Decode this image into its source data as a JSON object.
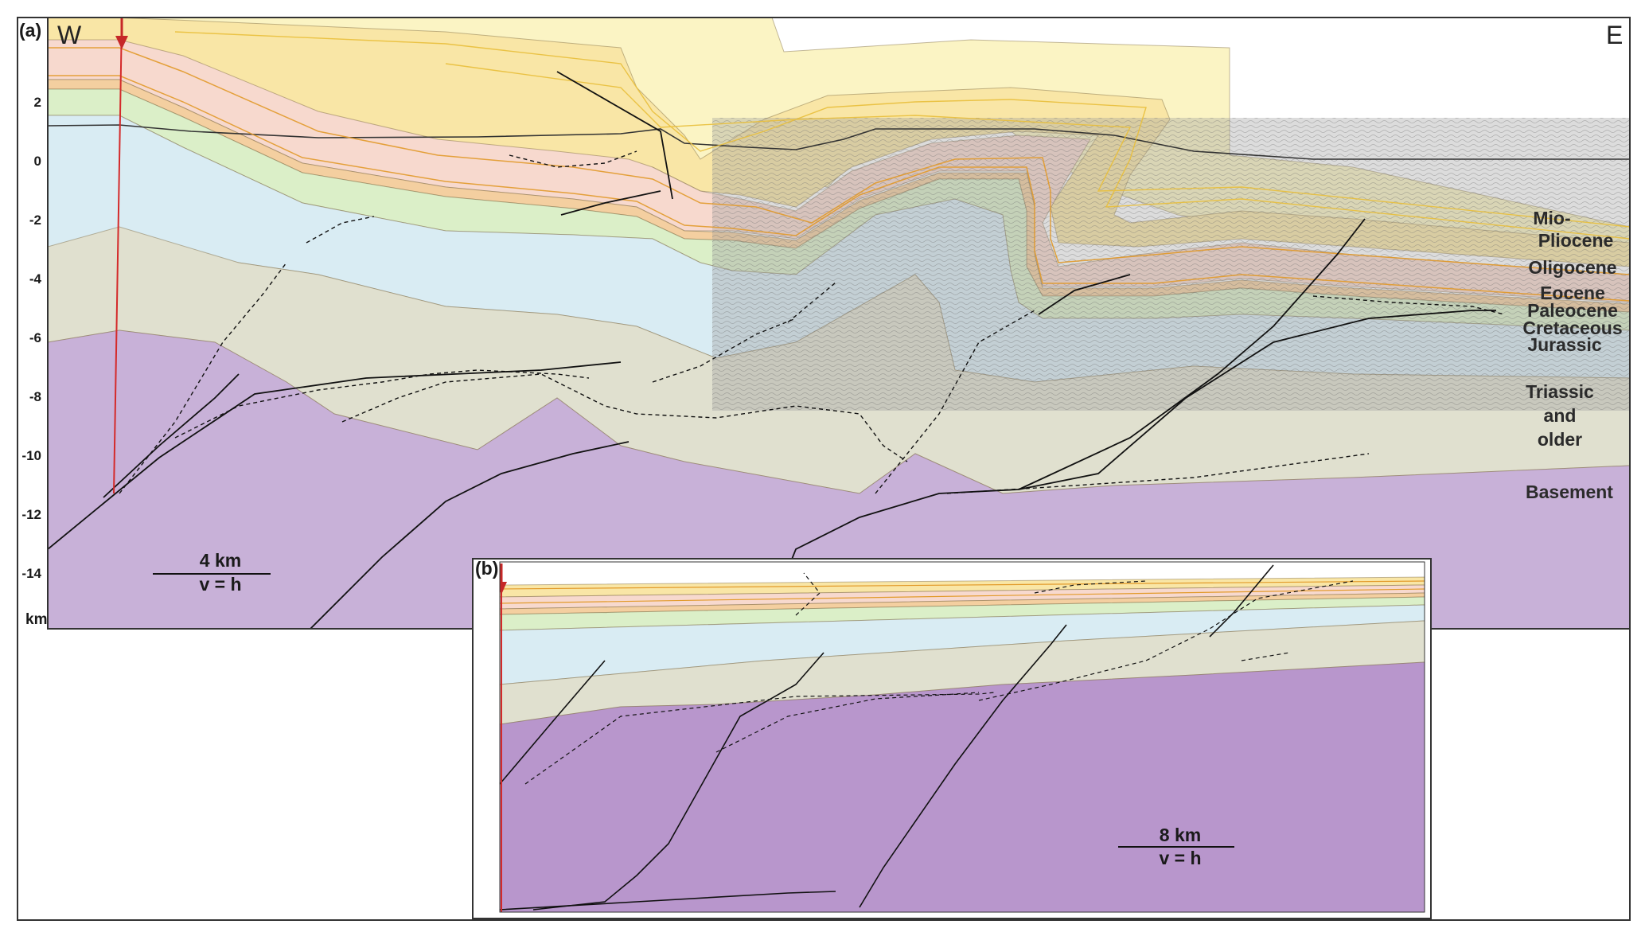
{
  "panel_a": {
    "label": "(a)",
    "west": "W",
    "east": "E",
    "depth_ticks": [
      "2",
      "0",
      "-2",
      "-4",
      "-6",
      "-8",
      "-10",
      "-12",
      "-14"
    ],
    "depth_unit": "km",
    "units": {
      "mio_1": "Mio-",
      "mio_2": "Pliocene",
      "oligocene": "Oligocene",
      "eocene": "Eocene",
      "paleocene": "Paleocene",
      "cretaceous": "Cretaceous",
      "jurassic": "Jurassic",
      "triassic_1": "Triassic",
      "triassic_2": "and",
      "triassic_3": "older",
      "basement": "Basement"
    },
    "scale_length": "4 km",
    "scale_ratio": "v = h"
  },
  "panel_b": {
    "label": "(b)",
    "scale_length": "8 km",
    "scale_ratio": "v = h"
  },
  "colors": {
    "basement": "#c8b1d8",
    "basement_b": "#b896cc",
    "triassic": "#e0e0cf",
    "jurassic": "#d9ecf3",
    "cretaceous": "#dbefc8",
    "paleocene": "#f4cfa0",
    "eocene": "#f7d9ce",
    "oligocene": "#f9e6a6",
    "miopliocene": "#fbf4c4",
    "seismic_overlay": "#9a9a9a",
    "well": "#d42a2a"
  }
}
